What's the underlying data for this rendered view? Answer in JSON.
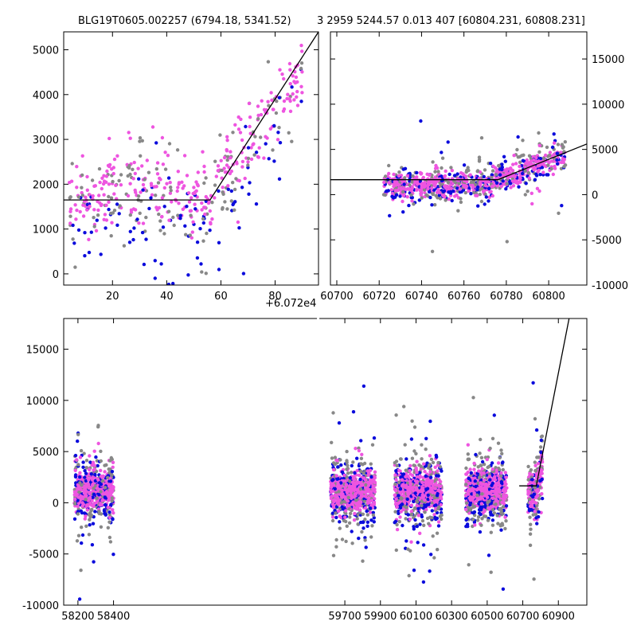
{
  "figure": {
    "title_left": "BLG19T0605.002257 (6794.18, 5341.52)",
    "title_right": "3 2959 5244.57 0.013 407 [60804.231, 60808.231]",
    "offset_label": "+6.072e4"
  },
  "colors": {
    "blue": "#0b0bdc",
    "pink": "#ee55e0",
    "gray": "#888888",
    "model": "#000000"
  },
  "chart_data": [
    {
      "id": "top-left",
      "type": "scatter",
      "title": "",
      "xlim": [
        2,
        96
      ],
      "ylim": [
        -250,
        5400
      ],
      "x_ticks": [
        20,
        40,
        60,
        80
      ],
      "x_tick_labels": [
        "20",
        "40",
        "60",
        "80"
      ],
      "y_ticks": [
        0,
        1000,
        2000,
        3000,
        4000,
        5000
      ],
      "y_tick_labels": [
        "0",
        "1000",
        "2000",
        "3000",
        "4000",
        "5000"
      ],
      "y_axis_side": "left",
      "model_line": [
        [
          2,
          1650
        ],
        [
          56,
          1650
        ],
        [
          96,
          5400
        ]
      ],
      "trend": {
        "base": 1650,
        "break_x": 56,
        "end_x": 96,
        "end_y": 4900
      },
      "noise": {
        "gray": 600,
        "blue": 650,
        "pink": 450
      }
    },
    {
      "id": "top-right",
      "type": "scatter",
      "title": "",
      "xlim": [
        60697,
        60818
      ],
      "ylim": [
        -10000,
        18000
      ],
      "x_ticks": [
        60700,
        60720,
        60740,
        60760,
        60780,
        60800
      ],
      "x_tick_labels": [
        "60700",
        "60720",
        "60740",
        "60760",
        "60780",
        "60800"
      ],
      "y_ticks": [
        -10000,
        -5000,
        0,
        5000,
        10000,
        15000
      ],
      "y_tick_labels": [
        "-10000",
        "-5000",
        "0",
        "5000",
        "10000",
        "15000"
      ],
      "y_axis_side": "right",
      "model_line": [
        [
          60697,
          1650
        ],
        [
          60776,
          1650
        ],
        [
          60818,
          5600
        ]
      ],
      "segments": [
        [
          60722,
          60808
        ]
      ],
      "noise": {
        "gray": 1200,
        "blue": 900,
        "pink": 700
      }
    },
    {
      "id": "bottom",
      "type": "scatter",
      "title": "",
      "xlim": [
        58120,
        61060
      ],
      "ylim": [
        -10000,
        18000
      ],
      "x_ticks": [
        58200,
        58400,
        59700,
        59900,
        60100,
        60300,
        60500,
        60700,
        60900
      ],
      "x_tick_labels": [
        "58200",
        "58400",
        "59700",
        "59900",
        "60100",
        "60300",
        "60500",
        "60700",
        "60900"
      ],
      "y_ticks": [
        -10000,
        -5000,
        0,
        5000,
        10000,
        15000
      ],
      "y_tick_labels": [
        "-10000",
        "-5000",
        "0",
        "5000",
        "10000",
        "15000"
      ],
      "y_axis_side": "left",
      "model_line": [
        [
          60680,
          1650
        ],
        [
          60776,
          1650
        ],
        [
          60960,
          18000
        ]
      ],
      "segments": [
        [
          58180,
          58400
        ],
        [
          59620,
          59870
        ],
        [
          59980,
          60245
        ],
        [
          60380,
          60610
        ],
        [
          60730,
          60810
        ]
      ],
      "noise": {
        "gray": 1800,
        "blue": 1500,
        "pink": 900
      }
    }
  ]
}
